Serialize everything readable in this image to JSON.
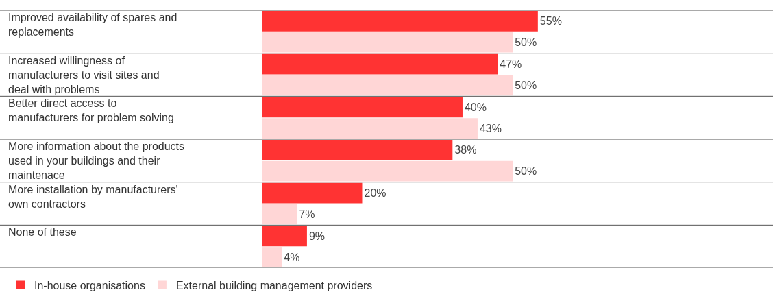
{
  "chart_data": {
    "type": "bar",
    "orientation": "horizontal",
    "categories": [
      "Improved availability of spares and replacements",
      "Increased willingness of manufacturers to visit sites and deal with problems",
      "Better direct access to manufacturers for problem solving",
      "More information about the products used in your buildings and their maintenace",
      "More installation by manufacturers' own contractors",
      "None of these"
    ],
    "series": [
      {
        "name": "In-house organisations",
        "color": "#ff3333",
        "values": [
          55,
          47,
          40,
          38,
          20,
          9
        ],
        "value_labels": [
          "55%",
          "47%",
          "40%",
          "38%",
          "20%",
          "9%"
        ]
      },
      {
        "name": "External building management providers",
        "color": "#ffd6d6",
        "values": [
          50,
          50,
          43,
          50,
          7,
          4
        ],
        "value_labels": [
          "50%",
          "50%",
          "43%",
          "50%",
          "7%",
          "4%"
        ]
      }
    ],
    "legend": "bottom left",
    "grid": false
  }
}
